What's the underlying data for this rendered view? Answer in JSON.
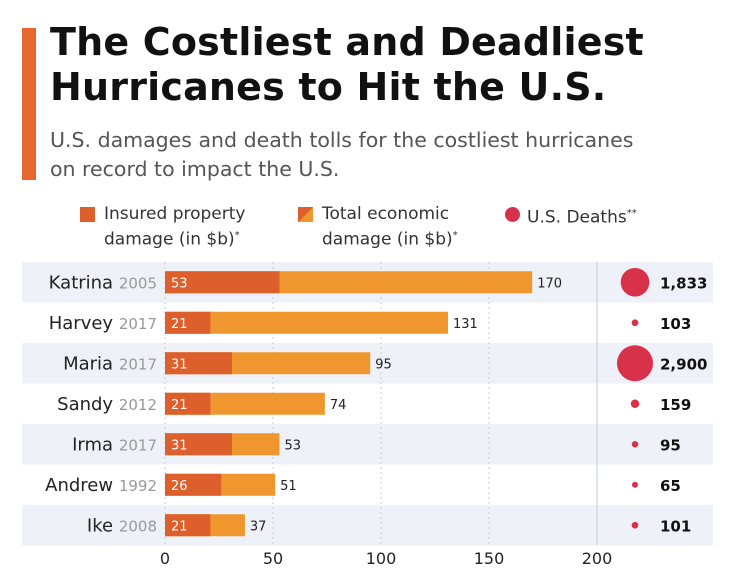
{
  "header": {
    "title_line1": "The Costliest and Deadliest",
    "title_line2": "Hurricanes to Hit the U.S.",
    "subtitle_line1": "U.S. damages and death tolls for the costliest hurricanes",
    "subtitle_line2": "on record to impact the U.S."
  },
  "legend": {
    "insured_line1": "Insured property",
    "insured_line2": "damage (in $b)",
    "insured_mark": "*",
    "total_line1": "Total economic",
    "total_line2": "damage (in $b)",
    "total_mark": "*",
    "deaths": "U.S. Deaths",
    "deaths_mark": "**"
  },
  "colors": {
    "insured": "#dd5f2b",
    "total": "#f0962f",
    "deaths": "#d8324a",
    "accent": "#e8672e",
    "band": "#eef2f8"
  },
  "chart_data": {
    "type": "bar",
    "orientation": "horizontal",
    "categories": [
      "Katrina",
      "Harvey",
      "Maria",
      "Sandy",
      "Irma",
      "Andrew",
      "Ike"
    ],
    "years": [
      "2005",
      "2017",
      "2017",
      "2012",
      "2017",
      "1992",
      "2008"
    ],
    "series": [
      {
        "name": "Insured property damage (in $b)",
        "values": [
          53,
          21,
          31,
          21,
          31,
          26,
          21
        ]
      },
      {
        "name": "Total economic damage (in $b)",
        "values": [
          170,
          131,
          95,
          74,
          53,
          51,
          37
        ]
      }
    ],
    "deaths": {
      "name": "U.S. Deaths",
      "values": [
        1833,
        103,
        2900,
        159,
        95,
        65,
        101
      ],
      "labels": [
        "1,833",
        "103",
        "2,900",
        "159",
        "95",
        "65",
        "101"
      ]
    },
    "xlim": [
      0,
      200
    ],
    "xticks": [
      "0",
      "50",
      "100",
      "150",
      "200"
    ]
  }
}
